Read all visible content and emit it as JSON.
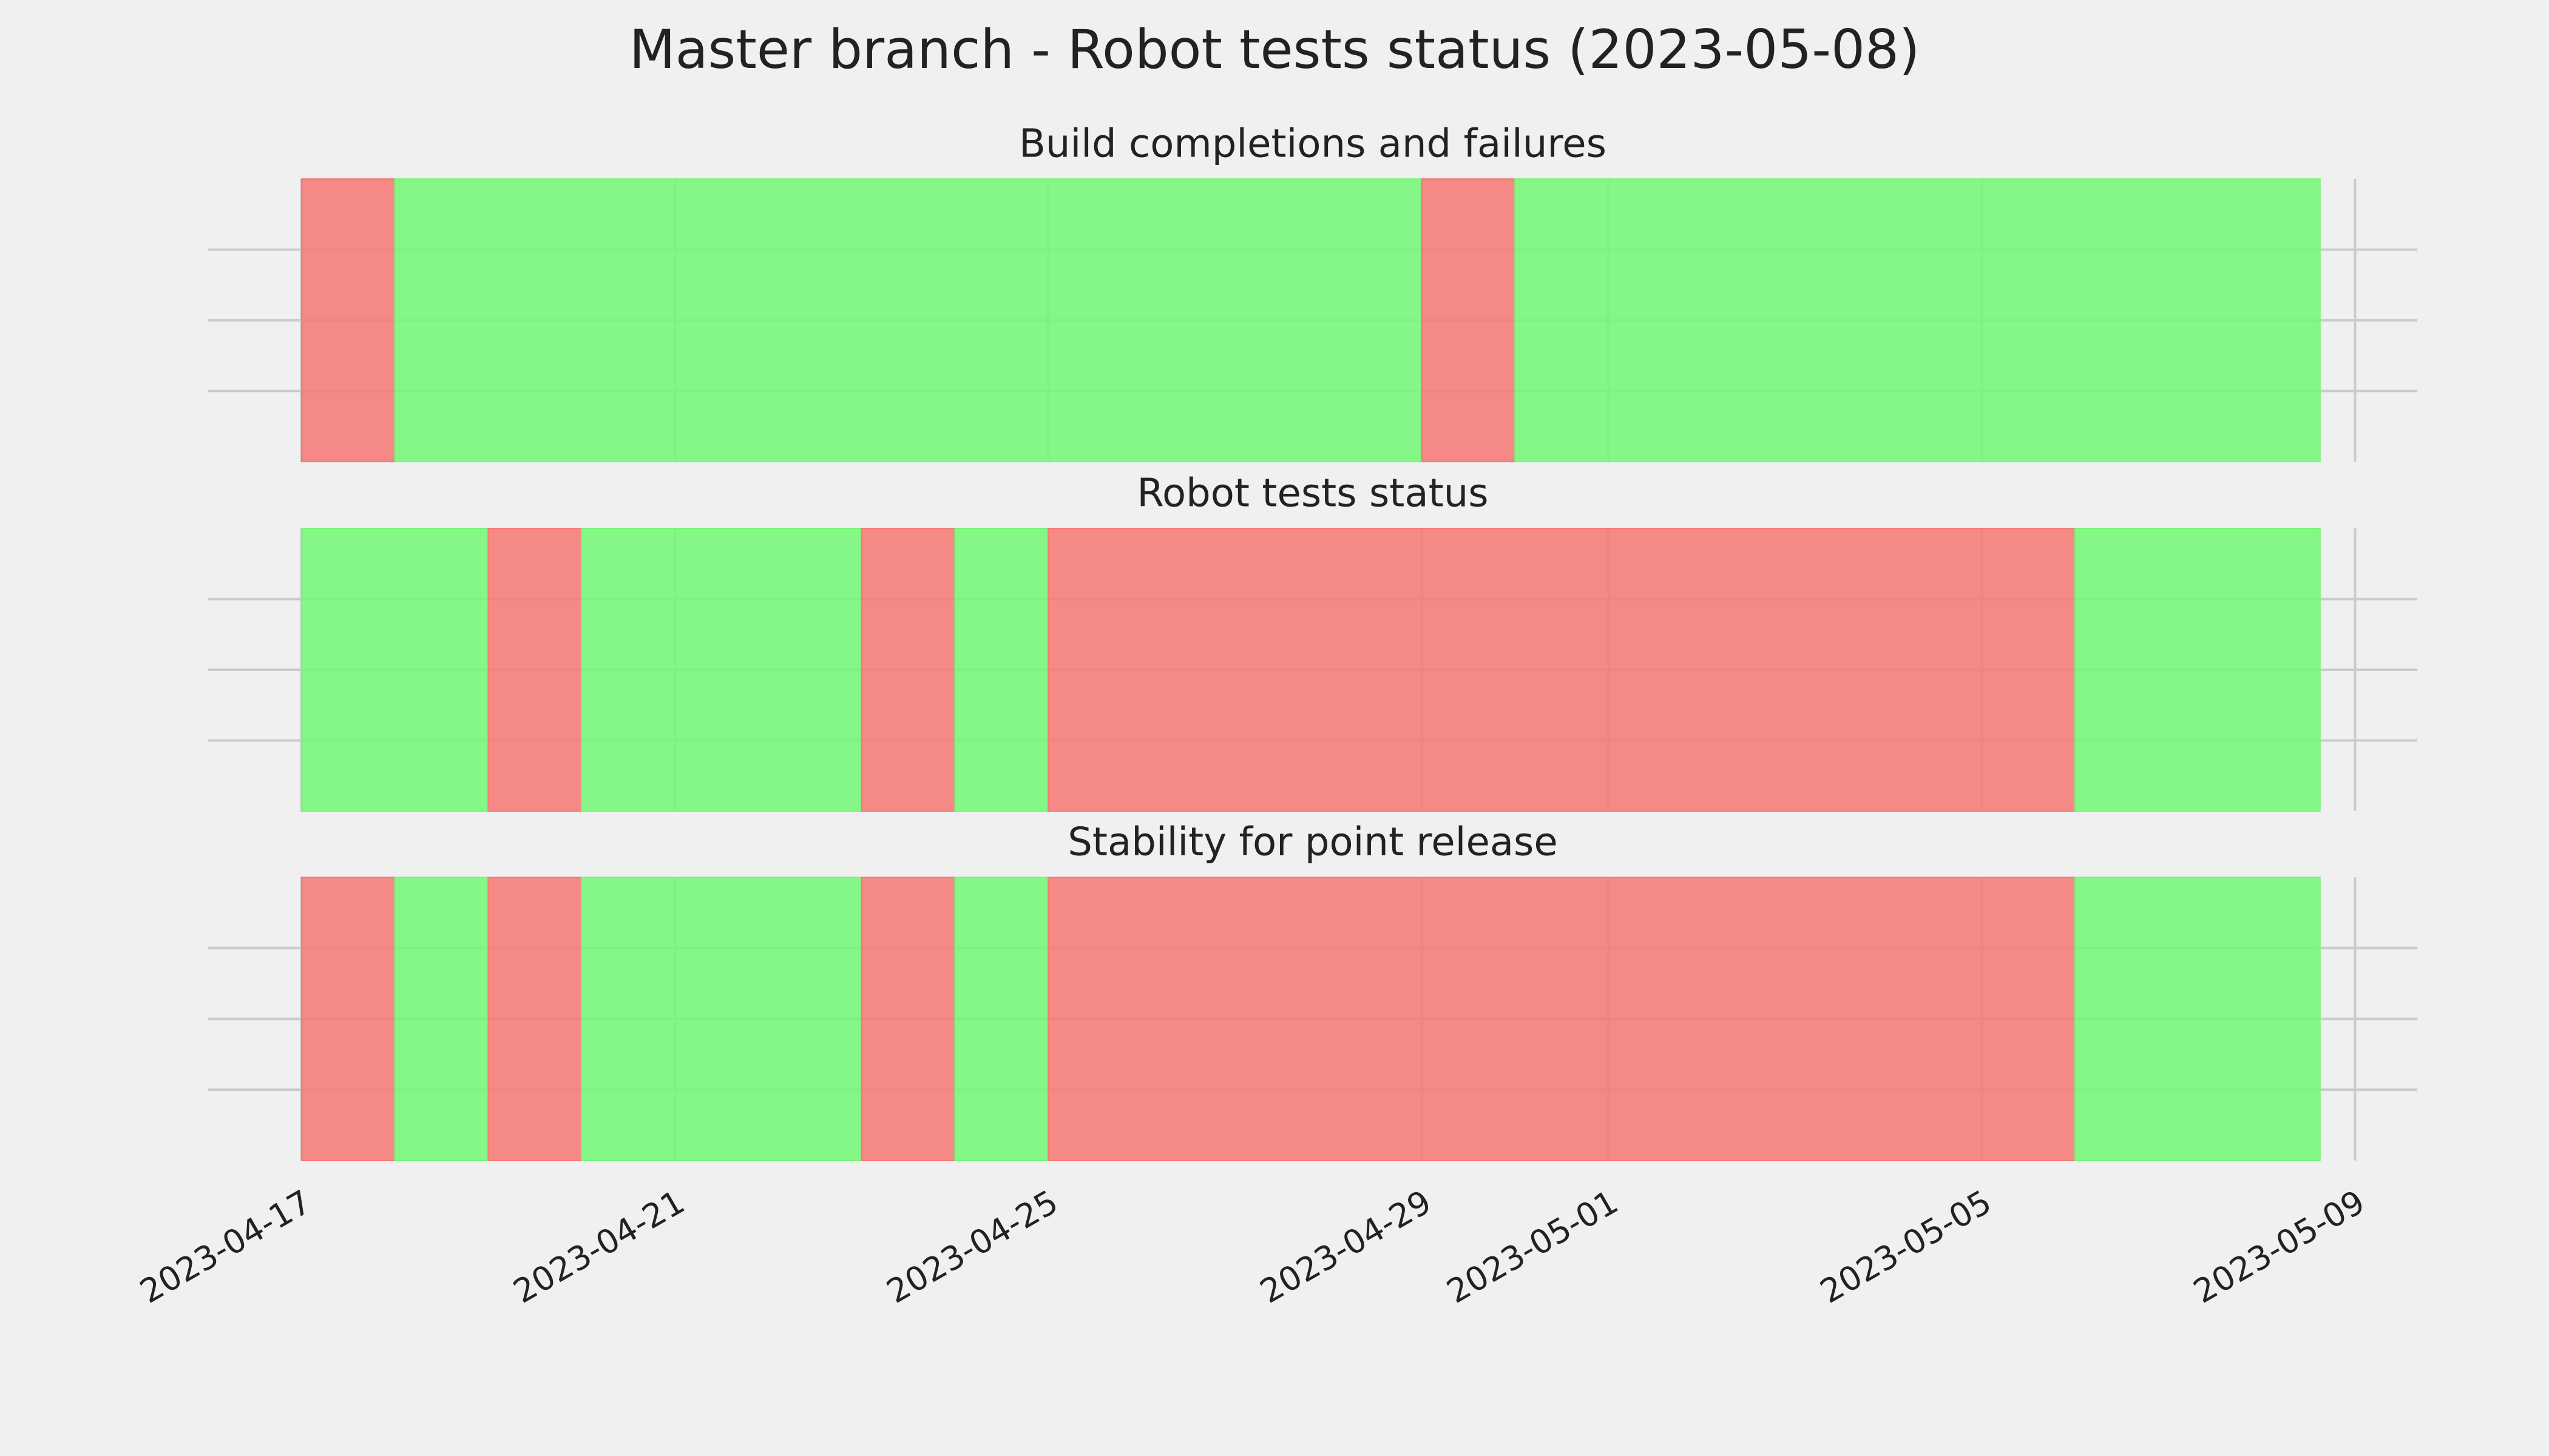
{
  "title": "Master branch - Robot tests status (2023-05-08)",
  "chart_data": [
    {
      "type": "timeline",
      "title": "Build completions and failures",
      "xlim": [
        "2023-04-16",
        "2023-05-09T16:00"
      ],
      "xticks": [
        "2023-04-17",
        "2023-04-21",
        "2023-04-25",
        "2023-04-29",
        "2023-05-01",
        "2023-05-05",
        "2023-05-09"
      ],
      "ylim": [
        0,
        1
      ],
      "yticks": [
        0.25,
        0.5,
        0.75
      ],
      "grid": true,
      "show_xtick_labels": false,
      "segments": [
        {
          "start": "2023-04-17",
          "end": "2023-04-18",
          "color": "#f47a75"
        },
        {
          "start": "2023-04-18",
          "end": "2023-04-29",
          "color": "#75f778"
        },
        {
          "start": "2023-04-29",
          "end": "2023-04-30",
          "color": "#f47a75"
        },
        {
          "start": "2023-04-30",
          "end": "2023-05-08T15:00",
          "color": "#75f778"
        }
      ]
    },
    {
      "type": "timeline",
      "title": "Robot tests status",
      "xlim": [
        "2023-04-16",
        "2023-05-09T16:00"
      ],
      "xticks": [
        "2023-04-17",
        "2023-04-21",
        "2023-04-25",
        "2023-04-29",
        "2023-05-01",
        "2023-05-05",
        "2023-05-09"
      ],
      "ylim": [
        0,
        1
      ],
      "yticks": [
        0.25,
        0.5,
        0.75
      ],
      "grid": true,
      "show_xtick_labels": false,
      "segments": [
        {
          "start": "2023-04-17",
          "end": "2023-04-19",
          "color": "#75f778"
        },
        {
          "start": "2023-04-19",
          "end": "2023-04-20",
          "color": "#f47a75"
        },
        {
          "start": "2023-04-20",
          "end": "2023-04-23",
          "color": "#75f778"
        },
        {
          "start": "2023-04-23",
          "end": "2023-04-24",
          "color": "#f47a75"
        },
        {
          "start": "2023-04-24",
          "end": "2023-04-25",
          "color": "#75f778"
        },
        {
          "start": "2023-04-25",
          "end": "2023-05-06",
          "color": "#f47a75"
        },
        {
          "start": "2023-05-06",
          "end": "2023-05-08T15:00",
          "color": "#75f778"
        }
      ]
    },
    {
      "type": "timeline",
      "title": "Stability for point release",
      "xlim": [
        "2023-04-16",
        "2023-05-09T16:00"
      ],
      "xticks": [
        "2023-04-17",
        "2023-04-21",
        "2023-04-25",
        "2023-04-29",
        "2023-05-01",
        "2023-05-05",
        "2023-05-09"
      ],
      "ylim": [
        0,
        1
      ],
      "yticks": [
        0.25,
        0.5,
        0.75
      ],
      "grid": true,
      "show_xtick_labels": true,
      "segments": [
        {
          "start": "2023-04-17",
          "end": "2023-04-18",
          "color": "#f47a75"
        },
        {
          "start": "2023-04-18",
          "end": "2023-04-19",
          "color": "#75f778"
        },
        {
          "start": "2023-04-19",
          "end": "2023-04-20",
          "color": "#f47a75"
        },
        {
          "start": "2023-04-20",
          "end": "2023-04-23",
          "color": "#75f778"
        },
        {
          "start": "2023-04-23",
          "end": "2023-04-24",
          "color": "#f47a75"
        },
        {
          "start": "2023-04-24",
          "end": "2023-04-25",
          "color": "#75f778"
        },
        {
          "start": "2023-04-25",
          "end": "2023-05-06",
          "color": "#f47a75"
        },
        {
          "start": "2023-05-06",
          "end": "2023-05-08T15:00",
          "color": "#75f778"
        }
      ]
    }
  ]
}
